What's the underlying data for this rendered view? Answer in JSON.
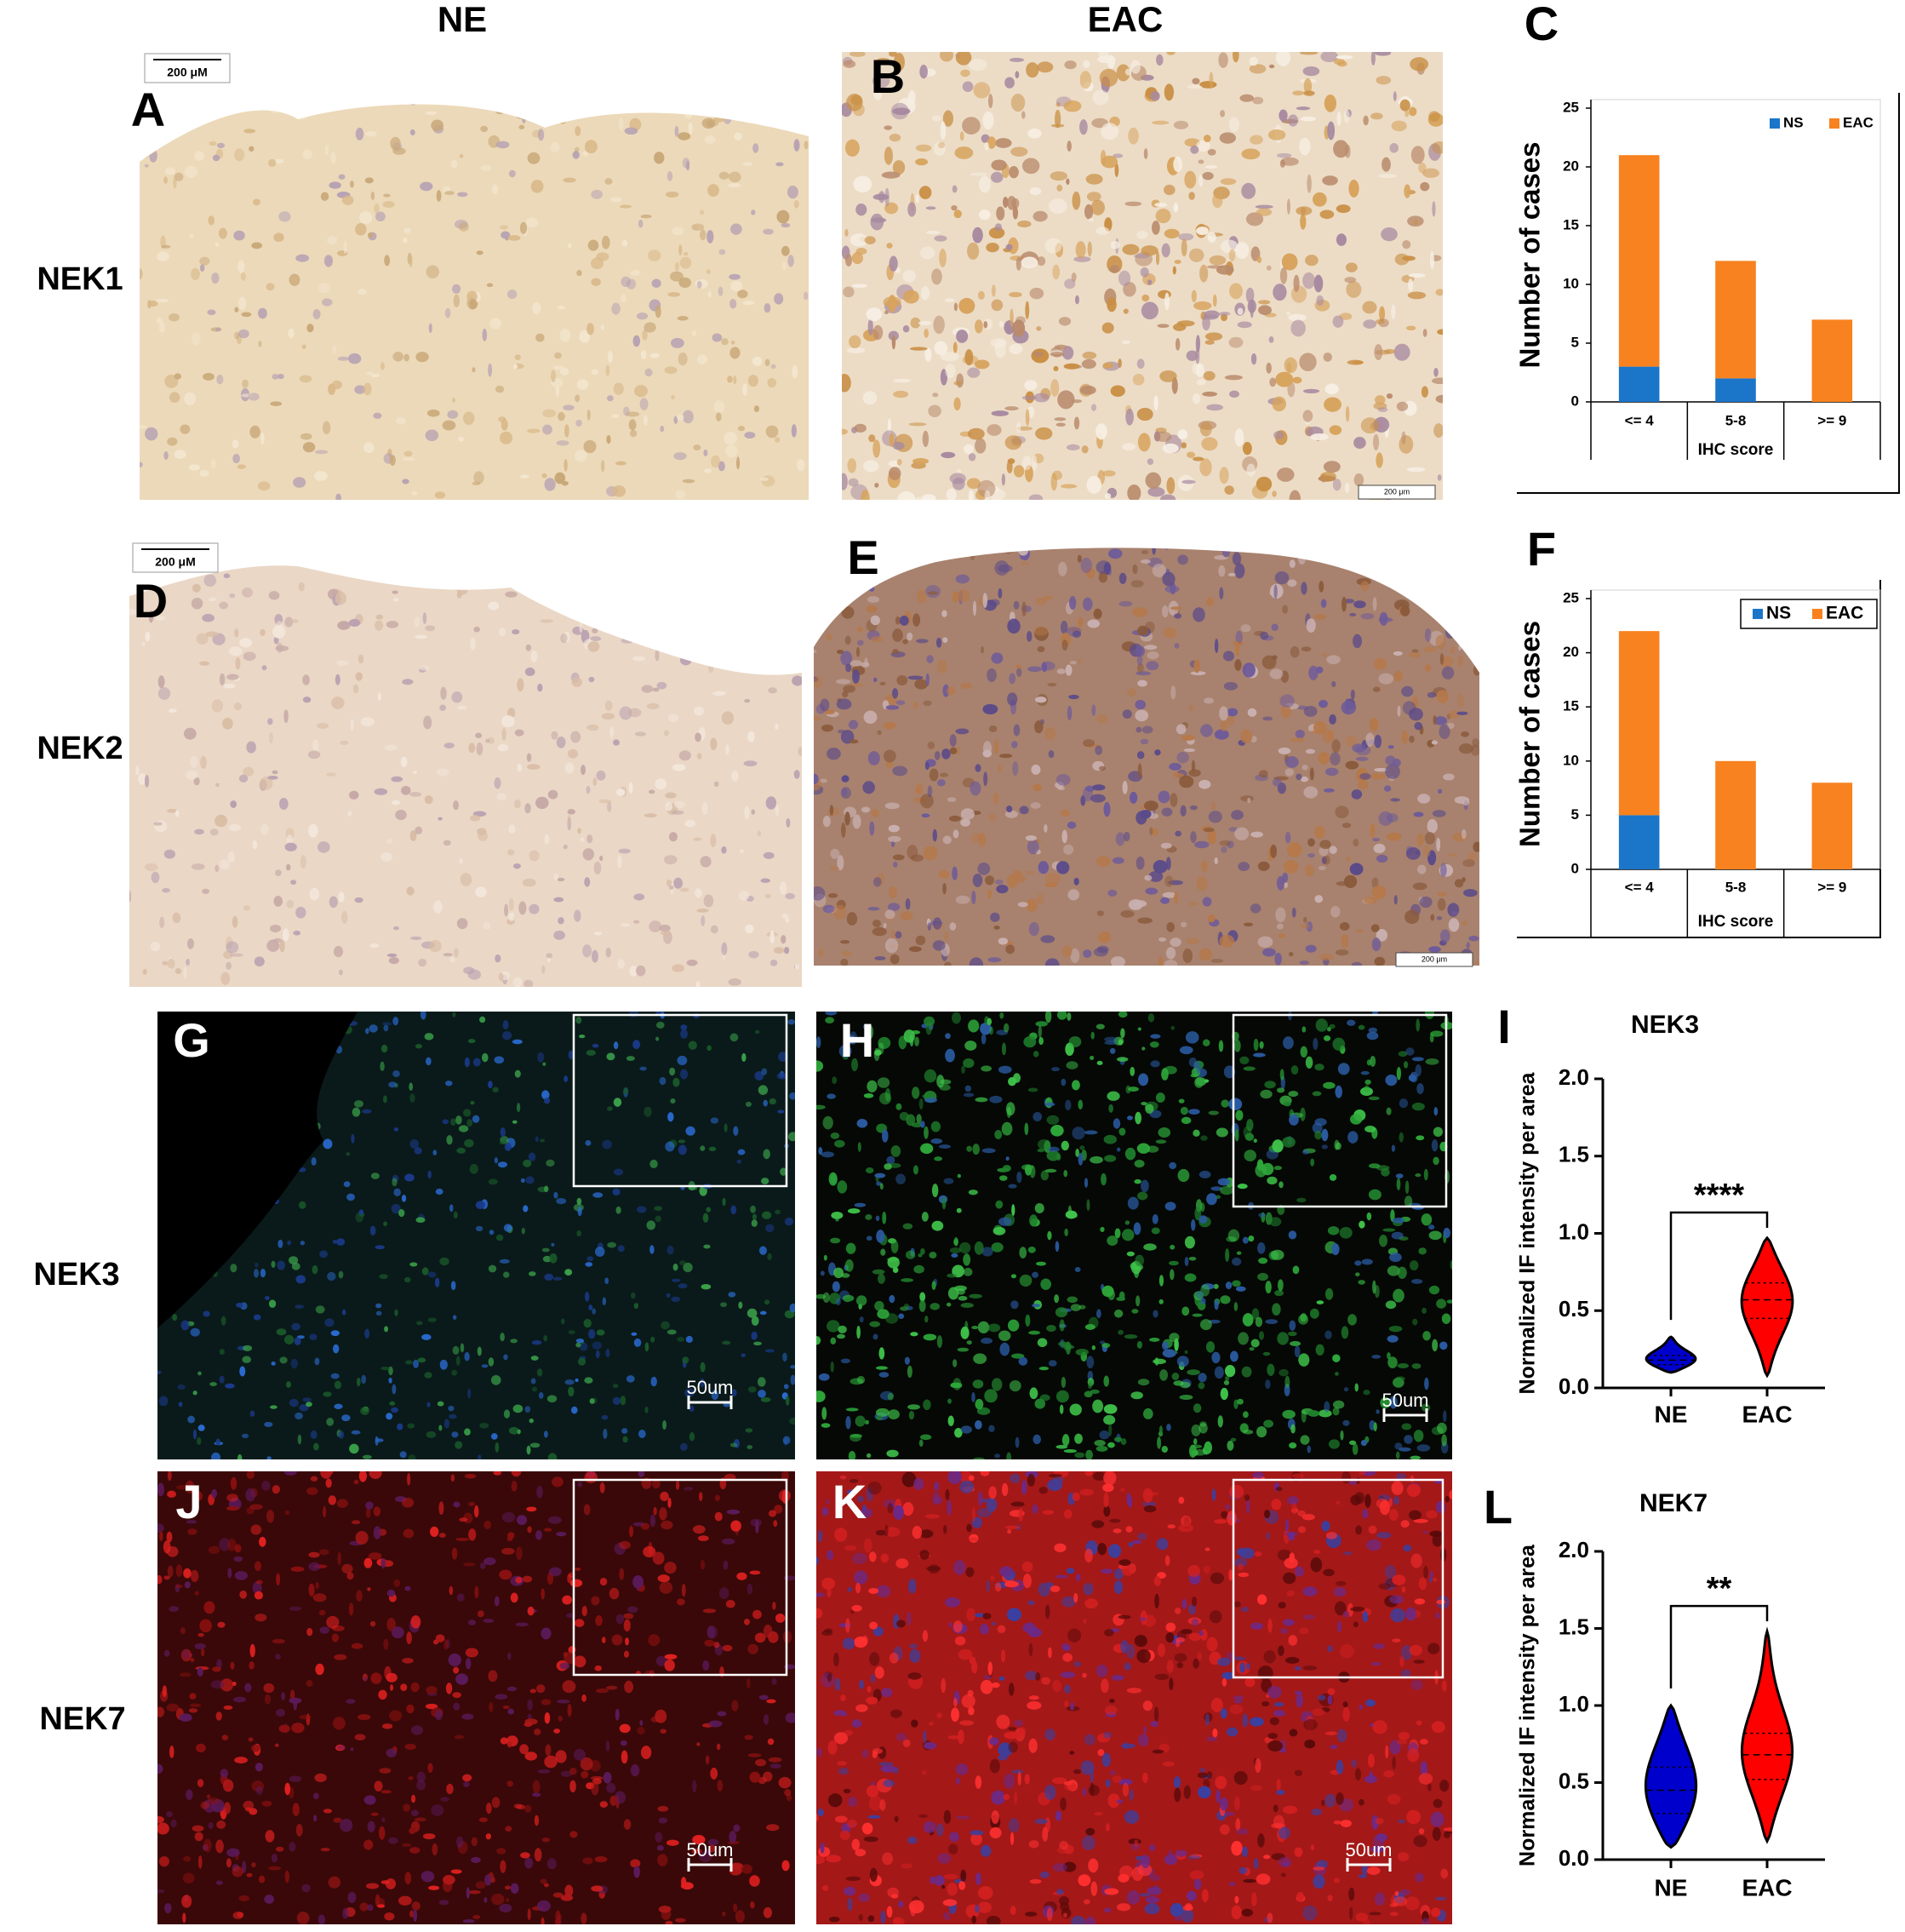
{
  "column_headers": [
    "NE",
    "EAC"
  ],
  "row_labels": [
    "NEK1",
    "NEK2",
    "NEK3",
    "NEK7"
  ],
  "panel_labels": [
    "A",
    "B",
    "C",
    "D",
    "E",
    "F",
    "G",
    "H",
    "I",
    "J",
    "K",
    "L"
  ],
  "scale_bars": [
    "200 μM",
    "200 μm",
    "200 μM",
    "200 μm",
    "50um",
    "50um",
    "50um",
    "50um"
  ],
  "chart_data": [
    {
      "type": "bar",
      "stacked": true,
      "categories": [
        "<= 4",
        "5-8",
        ">= 9"
      ],
      "series": [
        {
          "name": "NS",
          "color": "#1b75c9",
          "values": [
            3,
            2,
            0
          ]
        },
        {
          "name": "EAC",
          "color": "#f7821f",
          "values": [
            18,
            10,
            7
          ]
        }
      ],
      "ylim": [
        0,
        25
      ],
      "yticks": [
        0,
        5,
        10,
        15,
        20,
        25
      ],
      "y_label": "Number of cases",
      "x_label": "IHC score",
      "legend": "upper right",
      "legend_box": false
    },
    {
      "type": "bar",
      "stacked": true,
      "categories": [
        "<= 4",
        "5-8",
        ">= 9"
      ],
      "series": [
        {
          "name": "NS",
          "color": "#1b75c9",
          "values": [
            5,
            0,
            0
          ]
        },
        {
          "name": "EAC",
          "color": "#f7821f",
          "values": [
            17,
            10,
            8
          ]
        }
      ],
      "ylim": [
        0,
        25
      ],
      "yticks": [
        0,
        5,
        10,
        15,
        20,
        25
      ],
      "y_label": "Number of cases",
      "x_label": "IHC score",
      "legend": "upper right",
      "legend_box": true
    },
    {
      "type": "violin",
      "title": "NEK3",
      "categories": [
        "NE",
        "EAC"
      ],
      "colors": [
        "#0000cc",
        "#ff0000"
      ],
      "violins": [
        {
          "min": 0.1,
          "q1": 0.15,
          "median": 0.18,
          "q3": 0.21,
          "max": 0.33
        },
        {
          "min": 0.08,
          "q1": 0.45,
          "median": 0.57,
          "q3": 0.68,
          "max": 0.97
        }
      ],
      "ylim": [
        0,
        2
      ],
      "yticks": [
        {
          "value": 0,
          "label": "0.0"
        },
        0.5,
        {
          "value": 1,
          "label": "1.0"
        },
        1.5,
        {
          "value": 2,
          "label": "2.0"
        }
      ],
      "y_label": "Normalized IF intensity per area",
      "significance": "****"
    },
    {
      "type": "violin",
      "title": "NEK7",
      "categories": [
        "NE",
        "EAC"
      ],
      "colors": [
        "#0000cc",
        "#ff0000"
      ],
      "violins": [
        {
          "min": 0.08,
          "q1": 0.3,
          "median": 0.45,
          "q3": 0.6,
          "max": 1.0
        },
        {
          "min": 0.12,
          "q1": 0.52,
          "median": 0.68,
          "q3": 0.82,
          "max": 1.48
        }
      ],
      "ylim": [
        0,
        2
      ],
      "yticks": [
        {
          "value": 0,
          "label": "0.0"
        },
        0.5,
        {
          "value": 1,
          "label": "1.0"
        },
        1.5,
        {
          "value": 2,
          "label": "2.0"
        }
      ],
      "y_label": "Normalized IF intensity per area",
      "significance": "**"
    }
  ]
}
